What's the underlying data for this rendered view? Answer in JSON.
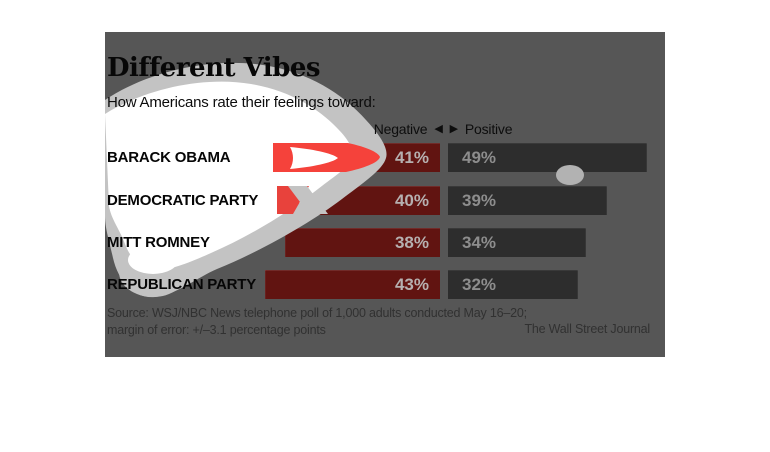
{
  "header": {
    "title": "Different Vibes",
    "subtitle": "How Americans rate their feelings toward:"
  },
  "legend": {
    "negative": "Negative",
    "positive": "Positive",
    "left_arrow": "◀",
    "right_arrow": "▶"
  },
  "footer": {
    "source_line1": "Source: WSJ/NBC News telephone poll of 1,000 adults conducted May 16–20;",
    "source_line2": "margin of error: +/–3.1 percentage points",
    "credit": "The Wall Street Journal"
  },
  "colors": {
    "panel_bg": "#565656",
    "negative_bar": "#611411",
    "positive_bar": "#2d2d2d",
    "negative_value_text": "#b6b0b0",
    "positive_value_text": "#8d8d8d",
    "splash_bright_red": "#f5423b",
    "splash_silver": "#c3c3c3",
    "splash_white": "#ffffff"
  },
  "chart_data": {
    "type": "bar",
    "orientation": "horizontal-diverging",
    "title": "Different Vibes",
    "subtitle": "How Americans rate their feelings toward:",
    "axis_header": "Negative ◀ ▶ Positive",
    "categories": [
      "BARACK OBAMA",
      "DEMOCRATIC PARTY",
      "MITT ROMNEY",
      "REPUBLICAN PARTY"
    ],
    "series": [
      {
        "name": "Negative",
        "values": [
          41,
          40,
          38,
          43
        ],
        "value_labels": [
          "41%",
          "40%",
          "38%",
          "43%"
        ],
        "color": "#611411"
      },
      {
        "name": "Positive",
        "values": [
          49,
          39,
          34,
          32
        ],
        "value_labels": [
          "49%",
          "39%",
          "34%",
          "32%"
        ],
        "color": "#2d2d2d"
      }
    ],
    "unit": "%",
    "xlim": [
      0,
      50
    ],
    "grid": false,
    "source": "Source: WSJ/NBC News telephone poll of 1,000 adults conducted May 16–20; margin of error: +/–3.1 percentage points",
    "credit": "The Wall Street Journal"
  }
}
